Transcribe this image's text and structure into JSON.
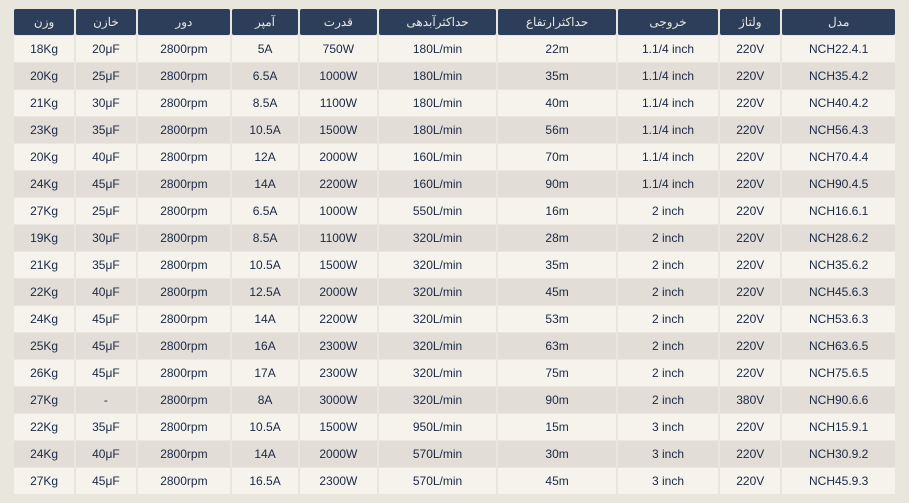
{
  "table": {
    "columns": [
      "وزن",
      "خازن",
      "دور",
      "آمپر",
      "قدرت",
      "حداکثرآبدهی",
      "حداکثرارتفاع",
      "خروجی",
      "ولتاژ",
      "مدل"
    ],
    "rows": [
      [
        "18Kg",
        "20μF",
        "2800rpm",
        "5A",
        "750W",
        "180L/min",
        "22m",
        "1.1/4 inch",
        "220V",
        "NCH22.4.1"
      ],
      [
        "20Kg",
        "25μF",
        "2800rpm",
        "6.5A",
        "1000W",
        "180L/min",
        "35m",
        "1.1/4 inch",
        "220V",
        "NCH35.4.2"
      ],
      [
        "21Kg",
        "30μF",
        "2800rpm",
        "8.5A",
        "1100W",
        "180L/min",
        "40m",
        "1.1/4 inch",
        "220V",
        "NCH40.4.2"
      ],
      [
        "23Kg",
        "35μF",
        "2800rpm",
        "10.5A",
        "1500W",
        "180L/min",
        "56m",
        "1.1/4 inch",
        "220V",
        "NCH56.4.3"
      ],
      [
        "20Kg",
        "40μF",
        "2800rpm",
        "12A",
        "2000W",
        "160L/min",
        "70m",
        "1.1/4 inch",
        "220V",
        "NCH70.4.4"
      ],
      [
        "24Kg",
        "45μF",
        "2800rpm",
        "14A",
        "2200W",
        "160L/min",
        "90m",
        "1.1/4 inch",
        "220V",
        "NCH90.4.5"
      ],
      [
        "27Kg",
        "25μF",
        "2800rpm",
        "6.5A",
        "1000W",
        "550L/min",
        "16m",
        "2 inch",
        "220V",
        "NCH16.6.1"
      ],
      [
        "19Kg",
        "30μF",
        "2800rpm",
        "8.5A",
        "1100W",
        "320L/min",
        "28m",
        "2 inch",
        "220V",
        "NCH28.6.2"
      ],
      [
        "21Kg",
        "35μF",
        "2800rpm",
        "10.5A",
        "1500W",
        "320L/min",
        "35m",
        "2 inch",
        "220V",
        "NCH35.6.2"
      ],
      [
        "22Kg",
        "40μF",
        "2800rpm",
        "12.5A",
        "2000W",
        "320L/min",
        "45m",
        "2 inch",
        "220V",
        "NCH45.6.3"
      ],
      [
        "24Kg",
        "45μF",
        "2800rpm",
        "14A",
        "2200W",
        "320L/min",
        "53m",
        "2 inch",
        "220V",
        "NCH53.6.3"
      ],
      [
        "25Kg",
        "45μF",
        "2800rpm",
        "16A",
        "2300W",
        "320L/min",
        "63m",
        "2 inch",
        "220V",
        "NCH63.6.5"
      ],
      [
        "26Kg",
        "45μF",
        "2800rpm",
        "17A",
        "2300W",
        "320L/min",
        "75m",
        "2 inch",
        "220V",
        "NCH75.6.5"
      ],
      [
        "27Kg",
        "-",
        "2800rpm",
        "8A",
        "3000W",
        "320L/min",
        "90m",
        "2 inch",
        "380V",
        "NCH90.6.6"
      ],
      [
        "22Kg",
        "35μF",
        "2800rpm",
        "10.5A",
        "1500W",
        "950L/min",
        "15m",
        "3 inch",
        "220V",
        "NCH15.9.1"
      ],
      [
        "24Kg",
        "40μF",
        "2800rpm",
        "14A",
        "2000W",
        "570L/min",
        "30m",
        "3 inch",
        "220V",
        "NCH30.9.2"
      ],
      [
        "27Kg",
        "45μF",
        "2800rpm",
        "16.5A",
        "2300W",
        "570L/min",
        "45m",
        "3 inch",
        "220V",
        "NCH45.9.3"
      ]
    ],
    "header_bg": "#2c3e5a",
    "header_fg": "#e8e6dd",
    "row_odd_bg": "#f5f3ec",
    "row_even_bg": "#e3ddd7",
    "page_bg": "#e8e6dd",
    "text_color": "#1a2845",
    "font_size": 12
  }
}
